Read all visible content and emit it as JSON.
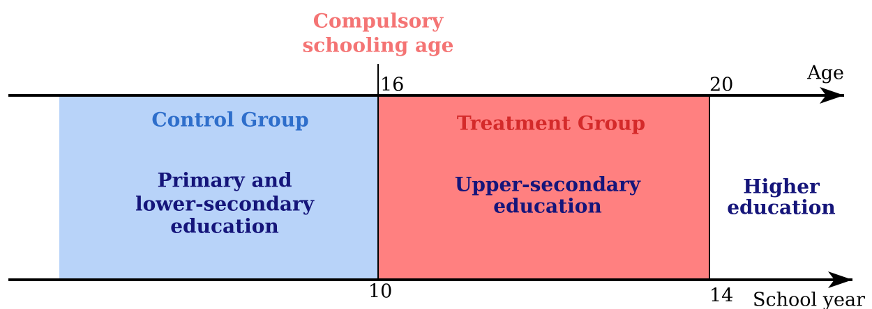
{
  "cutoff": {
    "label": [
      "Compulsory",
      "schooling age"
    ]
  },
  "age_axis": {
    "label": "Age",
    "ticks": [
      16,
      20
    ]
  },
  "school_axis": {
    "label": "School year",
    "ticks": [
      10,
      14
    ]
  },
  "groups": [
    {
      "name": "Control Group",
      "description": [
        "Primary and",
        "lower-secondary",
        "education"
      ]
    },
    {
      "name": "Treatment Group",
      "description": [
        "Upper-secondary",
        "education"
      ]
    },
    {
      "description": [
        "Higher",
        "education"
      ]
    }
  ]
}
